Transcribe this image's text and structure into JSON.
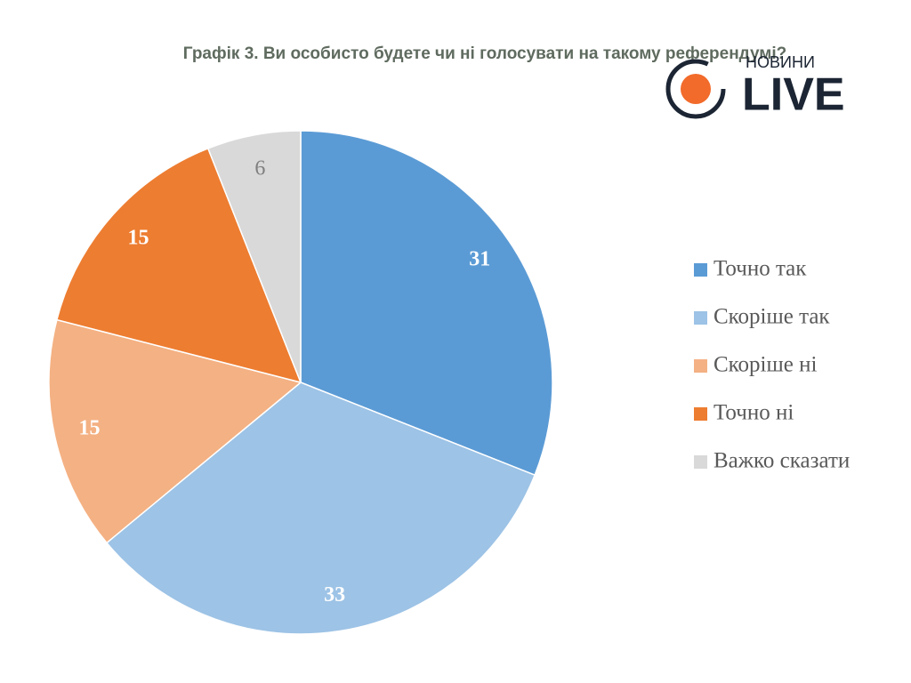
{
  "logo": {
    "small": "НОВИНИ",
    "big": "LIVE"
  },
  "chart_data": {
    "type": "pie",
    "title": "Графік 3. Ви особисто будете чи ні голосувати на такому референдумі?",
    "categories": [
      "Точно так",
      "Скоріше так",
      "Скоріше ні",
      "Точно ні",
      "Важко сказати"
    ],
    "values": [
      31,
      33,
      15,
      15,
      6
    ],
    "colors": [
      "#5b9bd5",
      "#9dc3e6",
      "#f4b183",
      "#ed7d31",
      "#d9d9d9"
    ],
    "label_colors": [
      "#ffffff",
      "#ffffff",
      "#ffffff",
      "#ffffff",
      "#7f7f7f"
    ],
    "legend": "right"
  }
}
